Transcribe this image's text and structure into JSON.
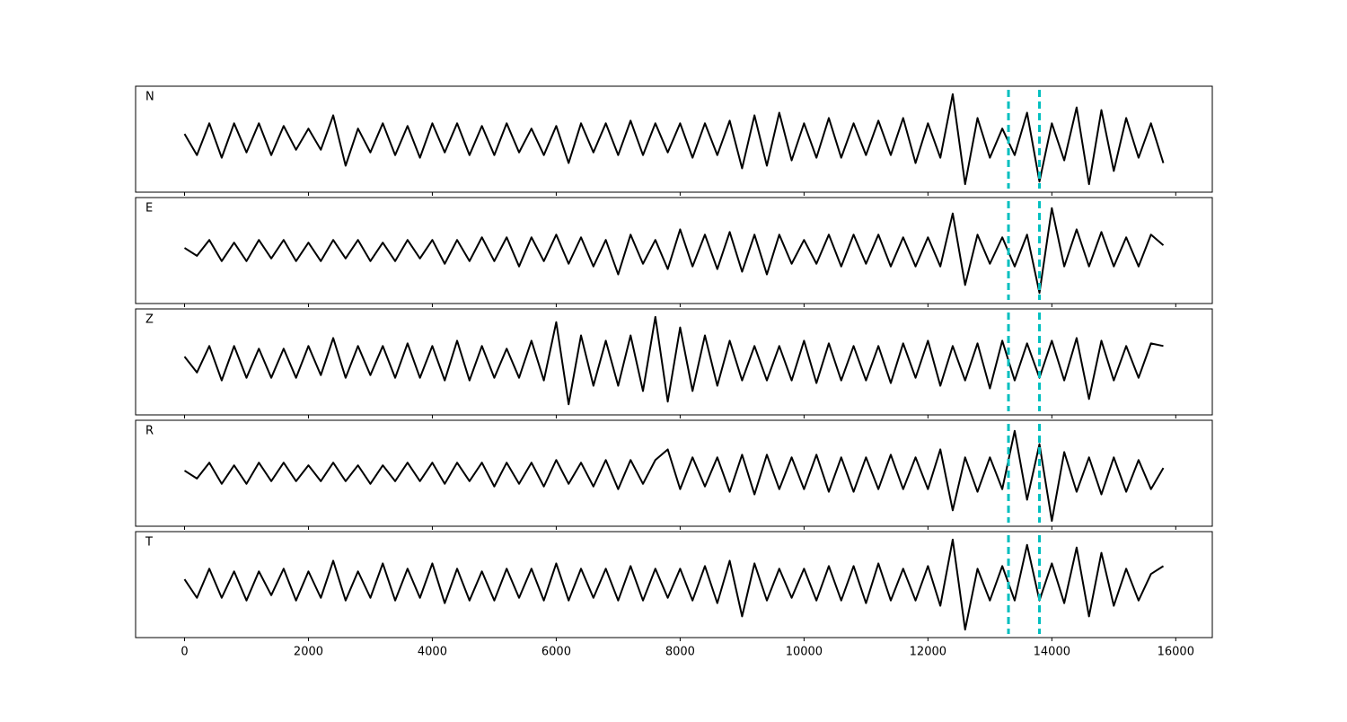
{
  "chart_data": {
    "type": "line",
    "x": [
      0,
      200,
      400,
      600,
      800,
      1000,
      1200,
      1400,
      1600,
      1800,
      2000,
      2200,
      2400,
      2600,
      2800,
      3000,
      3200,
      3400,
      3600,
      3800,
      4000,
      4200,
      4400,
      4600,
      4800,
      5000,
      5200,
      5400,
      5600,
      5800,
      6000,
      6200,
      6400,
      6600,
      6800,
      7000,
      7200,
      7400,
      7600,
      7800,
      8000,
      8200,
      8400,
      8600,
      8800,
      9000,
      9200,
      9400,
      9600,
      9800,
      10000,
      10200,
      10400,
      10600,
      10800,
      11000,
      11200,
      11400,
      11600,
      11800,
      12000,
      12200,
      12400,
      12600,
      12800,
      13000,
      13200,
      13400,
      13600,
      13800,
      14000,
      14200,
      14400,
      14600,
      14800,
      15000,
      15200,
      15400,
      15600,
      15800
    ],
    "xlim": [
      -790,
      16590
    ],
    "xticks": [
      0,
      2000,
      4000,
      6000,
      8000,
      10000,
      12000,
      14000,
      16000
    ],
    "ylim": [
      -1,
      1
    ],
    "series": [
      {
        "name": "N",
        "color": "#000000",
        "values": [
          0.1,
          -0.3,
          0.3,
          -0.35,
          0.3,
          -0.25,
          0.3,
          -0.3,
          0.25,
          -0.2,
          0.2,
          -0.2,
          0.45,
          -0.5,
          0.2,
          -0.25,
          0.3,
          -0.3,
          0.25,
          -0.35,
          0.3,
          -0.25,
          0.3,
          -0.3,
          0.25,
          -0.3,
          0.3,
          -0.25,
          0.2,
          -0.3,
          0.25,
          -0.45,
          0.3,
          -0.25,
          0.3,
          -0.3,
          0.35,
          -0.3,
          0.3,
          -0.25,
          0.3,
          -0.35,
          0.3,
          -0.3,
          0.35,
          -0.55,
          0.45,
          -0.5,
          0.5,
          -0.4,
          0.3,
          -0.35,
          0.4,
          -0.35,
          0.3,
          -0.3,
          0.35,
          -0.3,
          0.4,
          -0.45,
          0.3,
          -0.35,
          0.85,
          -0.85,
          0.4,
          -0.35,
          0.2,
          -0.3,
          0.5,
          -0.8,
          0.3,
          -0.4,
          0.6,
          -0.85,
          0.55,
          -0.6,
          0.4,
          -0.35,
          0.3,
          -0.45
        ]
      },
      {
        "name": "E",
        "color": "#000000",
        "values": [
          0.05,
          -0.1,
          0.2,
          -0.2,
          0.15,
          -0.2,
          0.2,
          -0.15,
          0.2,
          -0.2,
          0.15,
          -0.2,
          0.2,
          -0.15,
          0.2,
          -0.2,
          0.15,
          -0.2,
          0.2,
          -0.15,
          0.2,
          -0.25,
          0.2,
          -0.2,
          0.25,
          -0.2,
          0.25,
          -0.3,
          0.25,
          -0.2,
          0.3,
          -0.25,
          0.25,
          -0.3,
          0.2,
          -0.45,
          0.3,
          -0.25,
          0.2,
          -0.35,
          0.4,
          -0.3,
          0.3,
          -0.35,
          0.35,
          -0.4,
          0.3,
          -0.45,
          0.3,
          -0.25,
          0.2,
          -0.25,
          0.3,
          -0.3,
          0.3,
          -0.25,
          0.3,
          -0.3,
          0.25,
          -0.3,
          0.25,
          -0.3,
          0.7,
          -0.65,
          0.3,
          -0.25,
          0.25,
          -0.3,
          0.3,
          -0.8,
          0.8,
          -0.3,
          0.4,
          -0.3,
          0.35,
          -0.3,
          0.25,
          -0.3,
          0.3,
          0.1
        ]
      },
      {
        "name": "Z",
        "color": "#000000",
        "values": [
          0.1,
          -0.2,
          0.3,
          -0.35,
          0.3,
          -0.3,
          0.25,
          -0.3,
          0.25,
          -0.3,
          0.3,
          -0.25,
          0.45,
          -0.3,
          0.3,
          -0.25,
          0.3,
          -0.3,
          0.35,
          -0.3,
          0.3,
          -0.35,
          0.4,
          -0.35,
          0.3,
          -0.3,
          0.25,
          -0.3,
          0.4,
          -0.35,
          0.75,
          -0.8,
          0.5,
          -0.45,
          0.4,
          -0.45,
          0.5,
          -0.55,
          0.85,
          -0.75,
          0.65,
          -0.55,
          0.5,
          -0.45,
          0.4,
          -0.35,
          0.3,
          -0.35,
          0.3,
          -0.35,
          0.4,
          -0.4,
          0.35,
          -0.35,
          0.3,
          -0.35,
          0.3,
          -0.4,
          0.35,
          -0.3,
          0.4,
          -0.45,
          0.3,
          -0.35,
          0.35,
          -0.5,
          0.4,
          -0.35,
          0.35,
          -0.3,
          0.4,
          -0.35,
          0.45,
          -0.7,
          0.4,
          -0.35,
          0.3,
          -0.3,
          0.35,
          0.3
        ]
      },
      {
        "name": "R",
        "color": "#000000",
        "values": [
          0.05,
          -0.1,
          0.2,
          -0.2,
          0.15,
          -0.2,
          0.2,
          -0.15,
          0.2,
          -0.15,
          0.15,
          -0.15,
          0.2,
          -0.15,
          0.15,
          -0.2,
          0.15,
          -0.15,
          0.2,
          -0.15,
          0.2,
          -0.2,
          0.2,
          -0.15,
          0.2,
          -0.25,
          0.2,
          -0.2,
          0.2,
          -0.25,
          0.25,
          -0.2,
          0.2,
          -0.25,
          0.25,
          -0.3,
          0.25,
          -0.2,
          0.25,
          0.45,
          -0.3,
          0.3,
          -0.25,
          0.3,
          -0.35,
          0.35,
          -0.4,
          0.35,
          -0.3,
          0.3,
          -0.3,
          0.35,
          -0.35,
          0.3,
          -0.35,
          0.3,
          -0.3,
          0.35,
          -0.3,
          0.3,
          -0.3,
          0.45,
          -0.7,
          0.3,
          -0.35,
          0.3,
          -0.3,
          0.8,
          -0.5,
          0.55,
          -0.9,
          0.4,
          -0.35,
          0.3,
          -0.4,
          0.3,
          -0.35,
          0.25,
          -0.3,
          0.1
        ]
      },
      {
        "name": "T",
        "color": "#000000",
        "values": [
          0.1,
          -0.25,
          0.3,
          -0.25,
          0.25,
          -0.3,
          0.25,
          -0.2,
          0.3,
          -0.3,
          0.25,
          -0.25,
          0.45,
          -0.3,
          0.25,
          -0.25,
          0.4,
          -0.3,
          0.3,
          -0.25,
          0.4,
          -0.35,
          0.3,
          -0.3,
          0.25,
          -0.3,
          0.3,
          -0.25,
          0.3,
          -0.3,
          0.4,
          -0.3,
          0.3,
          -0.25,
          0.3,
          -0.3,
          0.35,
          -0.3,
          0.3,
          -0.25,
          0.3,
          -0.3,
          0.35,
          -0.35,
          0.45,
          -0.6,
          0.4,
          -0.3,
          0.3,
          -0.25,
          0.3,
          -0.3,
          0.35,
          -0.3,
          0.35,
          -0.35,
          0.4,
          -0.3,
          0.3,
          -0.3,
          0.35,
          -0.4,
          0.85,
          -0.85,
          0.3,
          -0.3,
          0.35,
          -0.3,
          0.75,
          -0.3,
          0.4,
          -0.35,
          0.7,
          -0.6,
          0.6,
          -0.4,
          0.3,
          -0.3,
          0.2,
          0.35
        ]
      }
    ],
    "vlines": {
      "values": [
        13300,
        13800
      ],
      "color": "#00bfbf",
      "style": "dashed"
    }
  }
}
